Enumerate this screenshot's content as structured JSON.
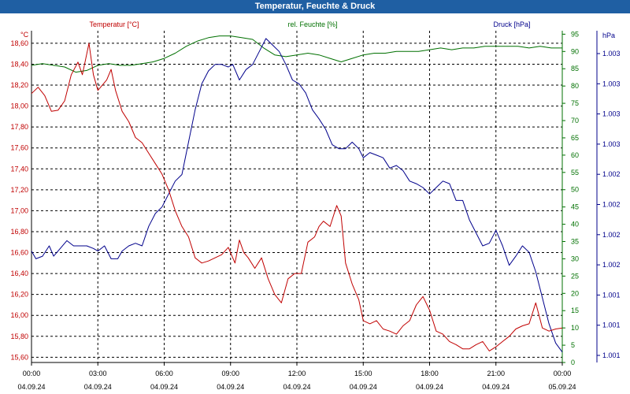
{
  "chart_data": {
    "type": "line",
    "title": "Temperatur, Feuchte & Druck",
    "x_ticks": [
      {
        "time": "00:00",
        "date": "04.09.24"
      },
      {
        "time": "03:00",
        "date": "04.09.24"
      },
      {
        "time": "06:00",
        "date": "04.09.24"
      },
      {
        "time": "09:00",
        "date": "04.09.24"
      },
      {
        "time": "12:00",
        "date": "04.09.24"
      },
      {
        "time": "15:00",
        "date": "04.09.24"
      },
      {
        "time": "18:00",
        "date": "04.09.24"
      },
      {
        "time": "21:00",
        "date": "04.09.24"
      },
      {
        "time": "00:00",
        "date": "05.09.24"
      }
    ],
    "xlim_hours": [
      0,
      24
    ],
    "axes": {
      "temperature": {
        "label": "Temperatur [°C]",
        "unit": "°C",
        "ylim": [
          15.55,
          18.72
        ],
        "ticks": [
          "15,60",
          "15,80",
          "16,00",
          "16,20",
          "16,40",
          "16,60",
          "16,80",
          "17,00",
          "17,20",
          "17,40",
          "17,60",
          "17,80",
          "18,00",
          "18,20",
          "18,40",
          "18,60"
        ]
      },
      "humidity": {
        "label": "rel. Feuchte [%]",
        "unit": "%",
        "ylim": [
          0,
          96
        ],
        "ticks": [
          "0",
          "5",
          "10",
          "15",
          "20",
          "25",
          "30",
          "35",
          "40",
          "45",
          "50",
          "55",
          "60",
          "65",
          "70",
          "75",
          "80",
          "85",
          "90",
          "95"
        ]
      },
      "pressure": {
        "label": "Druck [hPa]",
        "unit": "hPa",
        "ylim": [
          1000.9,
          1003.46
        ],
        "ticks": [
          "1.001",
          "1.001",
          "1.001",
          "1.002",
          "1.002",
          "1.002",
          "1.002",
          "1.003",
          "1.003",
          "1.003",
          "1.003"
        ]
      }
    },
    "series": [
      {
        "name": "Temperatur",
        "axis": "temperature",
        "color": "#c00000",
        "x": [
          0,
          0.3,
          0.6,
          0.9,
          1.2,
          1.5,
          1.8,
          2.1,
          2.3,
          2.5,
          2.6,
          2.8,
          3.0,
          3.2,
          3.4,
          3.6,
          3.8,
          4.1,
          4.4,
          4.7,
          5.0,
          5.3,
          5.6,
          5.9,
          6.2,
          6.5,
          6.8,
          7.1,
          7.4,
          7.7,
          8.0,
          8.3,
          8.6,
          8.9,
          9.2,
          9.4,
          9.6,
          9.8,
          10.1,
          10.4,
          10.7,
          11.0,
          11.3,
          11.6,
          11.9,
          12.2,
          12.5,
          12.8,
          13.0,
          13.2,
          13.5,
          13.8,
          14.0,
          14.2,
          14.5,
          14.8,
          15.0,
          15.3,
          15.6,
          15.9,
          16.2,
          16.5,
          16.8,
          17.1,
          17.4,
          17.7,
          18.0,
          18.3,
          18.6,
          18.9,
          19.2,
          19.5,
          19.8,
          20.1,
          20.4,
          20.7,
          21.0,
          21.3,
          21.6,
          21.9,
          22.2,
          22.5,
          22.8,
          23.1,
          23.4,
          23.7,
          24.0
        ],
        "values": [
          18.12,
          18.18,
          18.1,
          17.95,
          17.96,
          18.05,
          18.3,
          18.42,
          18.3,
          18.5,
          18.6,
          18.3,
          18.15,
          18.2,
          18.25,
          18.35,
          18.15,
          17.95,
          17.85,
          17.7,
          17.65,
          17.55,
          17.45,
          17.35,
          17.2,
          17.0,
          16.85,
          16.75,
          16.55,
          16.5,
          16.52,
          16.55,
          16.58,
          16.65,
          16.5,
          16.72,
          16.6,
          16.55,
          16.45,
          16.55,
          16.35,
          16.2,
          16.12,
          16.35,
          16.4,
          16.4,
          16.7,
          16.75,
          16.85,
          16.9,
          16.85,
          17.05,
          16.95,
          16.5,
          16.3,
          16.15,
          15.95,
          15.92,
          15.95,
          15.87,
          15.85,
          15.82,
          15.9,
          15.95,
          16.1,
          16.18,
          16.05,
          15.85,
          15.82,
          15.75,
          15.72,
          15.68,
          15.68,
          15.72,
          15.75,
          15.66,
          15.7,
          15.75,
          15.8,
          15.87,
          15.9,
          15.92,
          16.12,
          15.88,
          15.85,
          15.87,
          15.88
        ]
      },
      {
        "name": "rel. Feuchte",
        "axis": "humidity",
        "color": "#007000",
        "x": [
          0,
          0.5,
          1.0,
          1.5,
          2.0,
          2.5,
          3.0,
          3.5,
          4.0,
          4.5,
          5.0,
          5.5,
          6.0,
          6.5,
          7.0,
          7.5,
          8.0,
          8.5,
          9.0,
          9.5,
          10.0,
          10.5,
          11.0,
          11.5,
          12.0,
          12.5,
          13.0,
          13.5,
          14.0,
          14.5,
          15.0,
          15.5,
          16.0,
          16.5,
          17.0,
          17.5,
          18.0,
          18.5,
          19.0,
          19.5,
          20.0,
          20.5,
          21.0,
          21.5,
          22.0,
          22.5,
          23.0,
          23.5,
          24.0
        ],
        "values": [
          86,
          86.5,
          86,
          85.5,
          84,
          84.5,
          86,
          86.5,
          86,
          86,
          86.5,
          87,
          88,
          89.5,
          91.5,
          93,
          94,
          94.5,
          94.5,
          94,
          93.5,
          91,
          89,
          88.5,
          89,
          89.5,
          89,
          88,
          87,
          88,
          89,
          89.5,
          89.5,
          90,
          90,
          90,
          90.5,
          91,
          90.5,
          91,
          91,
          91.5,
          91.5,
          91.5,
          91.5,
          91,
          91.5,
          91,
          91
        ]
      },
      {
        "name": "Druck",
        "axis": "pressure",
        "color": "#00008b",
        "x": [
          0,
          0.2,
          0.5,
          0.8,
          1.0,
          1.3,
          1.6,
          1.9,
          2.2,
          2.5,
          2.8,
          3.0,
          3.3,
          3.6,
          3.9,
          4.1,
          4.4,
          4.7,
          5.0,
          5.3,
          5.6,
          5.9,
          6.2,
          6.5,
          6.8,
          7.1,
          7.4,
          7.7,
          8.0,
          8.3,
          8.6,
          8.9,
          9.1,
          9.4,
          9.7,
          10.0,
          10.3,
          10.6,
          10.9,
          11.2,
          11.5,
          11.8,
          12.1,
          12.4,
          12.7,
          13.0,
          13.3,
          13.6,
          13.9,
          14.2,
          14.5,
          14.8,
          15.0,
          15.3,
          15.6,
          15.9,
          16.2,
          16.5,
          16.8,
          17.1,
          17.4,
          17.7,
          18.0,
          18.3,
          18.6,
          18.9,
          19.2,
          19.5,
          19.8,
          20.1,
          20.4,
          20.7,
          21.0,
          21.3,
          21.6,
          21.9,
          22.2,
          22.5,
          22.8,
          23.1,
          23.4,
          23.7,
          24.0
        ],
        "values": [
          1001.76,
          1001.7,
          1001.72,
          1001.8,
          1001.72,
          1001.78,
          1001.84,
          1001.8,
          1001.8,
          1001.8,
          1001.78,
          1001.76,
          1001.8,
          1001.7,
          1001.7,
          1001.76,
          1001.8,
          1001.82,
          1001.8,
          1001.95,
          1002.05,
          1002.1,
          1002.2,
          1002.3,
          1002.35,
          1002.6,
          1002.85,
          1003.05,
          1003.15,
          1003.2,
          1003.2,
          1003.18,
          1003.2,
          1003.08,
          1003.16,
          1003.2,
          1003.3,
          1003.4,
          1003.35,
          1003.3,
          1003.2,
          1003.08,
          1003.05,
          1002.98,
          1002.85,
          1002.78,
          1002.7,
          1002.58,
          1002.55,
          1002.55,
          1002.6,
          1002.55,
          1002.48,
          1002.52,
          1002.5,
          1002.48,
          1002.4,
          1002.42,
          1002.38,
          1002.3,
          1002.28,
          1002.25,
          1002.2,
          1002.25,
          1002.3,
          1002.28,
          1002.15,
          1002.15,
          1002.0,
          1001.9,
          1001.8,
          1001.82,
          1001.92,
          1001.8,
          1001.65,
          1001.72,
          1001.8,
          1001.75,
          1001.6,
          1001.4,
          1001.2,
          1001.05,
          1000.98
        ]
      }
    ]
  }
}
